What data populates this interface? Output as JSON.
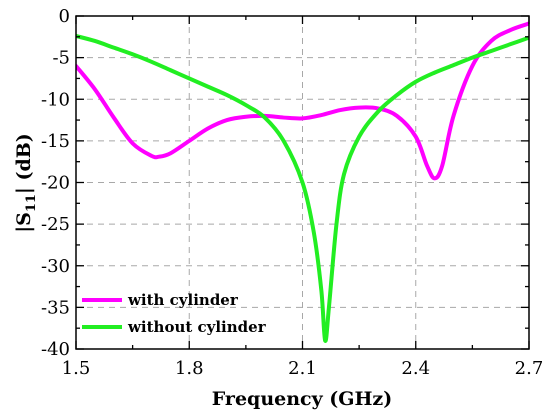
{
  "chart_data": {
    "type": "line",
    "xlabel": "Frequency (GHz)",
    "ylabel": "|S11| (dB)",
    "ylabel_main": "|S",
    "ylabel_sub": "11",
    "ylabel_rest": "| (dB)",
    "xlim": [
      1.5,
      2.7
    ],
    "ylim": [
      -40,
      0
    ],
    "x_ticks": [
      1.5,
      1.8,
      2.1,
      2.4,
      2.7
    ],
    "x_tick_labels": [
      "1.5",
      "1.8",
      "2.1",
      "2.4",
      "2.7"
    ],
    "y_ticks": [
      0,
      -5,
      -10,
      -15,
      -20,
      -25,
      -30,
      -35,
      -40
    ],
    "y_tick_labels": [
      "0",
      "-5",
      "-10",
      "-15",
      "-20",
      "-25",
      "-30",
      "-35",
      "-40"
    ],
    "grid": true,
    "legend_position": "bottom-left",
    "series": [
      {
        "name": "with cylinder",
        "color": "#ff00ff",
        "points": [
          [
            1.5,
            -6.0
          ],
          [
            1.55,
            -8.8
          ],
          [
            1.6,
            -12.2
          ],
          [
            1.65,
            -15.3
          ],
          [
            1.7,
            -16.8
          ],
          [
            1.72,
            -16.9
          ],
          [
            1.75,
            -16.5
          ],
          [
            1.8,
            -15.0
          ],
          [
            1.85,
            -13.5
          ],
          [
            1.9,
            -12.5
          ],
          [
            1.95,
            -12.1
          ],
          [
            2.0,
            -12.0
          ],
          [
            2.05,
            -12.2
          ],
          [
            2.1,
            -12.3
          ],
          [
            2.15,
            -11.9
          ],
          [
            2.2,
            -11.3
          ],
          [
            2.25,
            -11.0
          ],
          [
            2.3,
            -11.1
          ],
          [
            2.35,
            -12.0
          ],
          [
            2.4,
            -14.5
          ],
          [
            2.43,
            -18.0
          ],
          [
            2.45,
            -19.5
          ],
          [
            2.47,
            -18.0
          ],
          [
            2.5,
            -12.0
          ],
          [
            2.55,
            -6.0
          ],
          [
            2.6,
            -3.0
          ],
          [
            2.65,
            -1.7
          ],
          [
            2.7,
            -0.9
          ]
        ]
      },
      {
        "name": "without cylinder",
        "color": "#22ee22",
        "points": [
          [
            1.5,
            -2.4
          ],
          [
            1.55,
            -3.0
          ],
          [
            1.6,
            -3.8
          ],
          [
            1.65,
            -4.6
          ],
          [
            1.7,
            -5.5
          ],
          [
            1.75,
            -6.5
          ],
          [
            1.8,
            -7.5
          ],
          [
            1.85,
            -8.5
          ],
          [
            1.9,
            -9.5
          ],
          [
            1.95,
            -10.7
          ],
          [
            2.0,
            -12.2
          ],
          [
            2.05,
            -15.0
          ],
          [
            2.1,
            -20.0
          ],
          [
            2.13,
            -26.0
          ],
          [
            2.15,
            -33.0
          ],
          [
            2.16,
            -39.0
          ],
          [
            2.17,
            -35.0
          ],
          [
            2.19,
            -25.0
          ],
          [
            2.21,
            -19.0
          ],
          [
            2.25,
            -14.5
          ],
          [
            2.3,
            -11.5
          ],
          [
            2.35,
            -9.5
          ],
          [
            2.4,
            -7.9
          ],
          [
            2.45,
            -6.8
          ],
          [
            2.5,
            -5.9
          ],
          [
            2.55,
            -5.0
          ],
          [
            2.6,
            -4.2
          ],
          [
            2.65,
            -3.4
          ],
          [
            2.7,
            -2.6
          ]
        ]
      }
    ]
  }
}
